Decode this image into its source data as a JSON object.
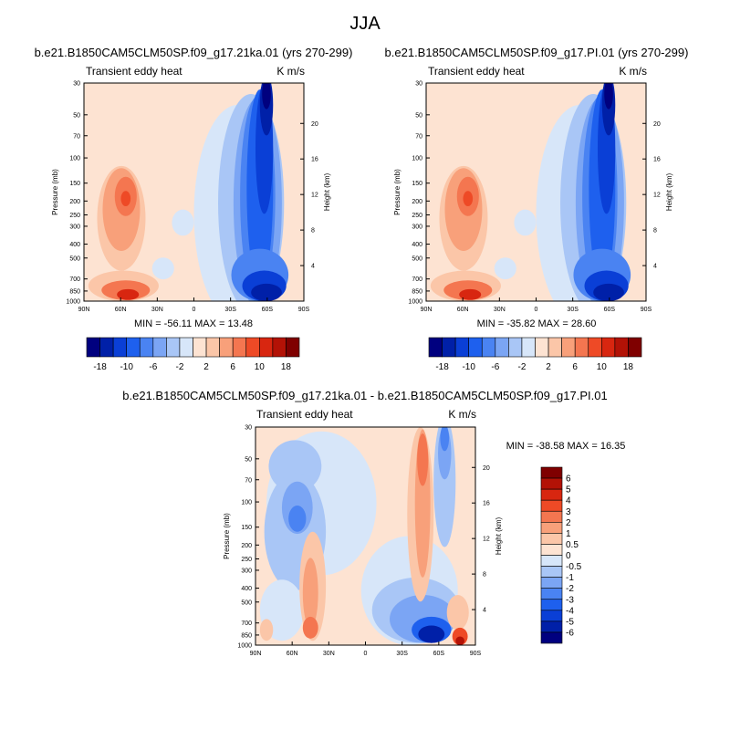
{
  "figure": {
    "title": "JJA"
  },
  "chart_data": [
    {
      "type": "heatmap",
      "case_title": "b.e21.B1850CAM5CLM50SP.f09_g17.21ka.01 (yrs 270-299)",
      "variable_label": "Transient eddy heat",
      "units": "K m/s",
      "ylabel": "Pressure (mb)",
      "ylabel_right": "Height (km)",
      "x_ticks": [
        "90N",
        "60N",
        "30N",
        "0",
        "30S",
        "60S",
        "90S"
      ],
      "y_ticks": [
        "30",
        "50",
        "70",
        "100",
        "150",
        "200",
        "250",
        "300",
        "400",
        "500",
        "700",
        "850",
        "1000"
      ],
      "height_ticks": [
        "20",
        "16",
        "12",
        "8",
        "4"
      ],
      "stats": "MIN = -56.11   MAX =  13.48",
      "min": -56.11,
      "max": 13.48,
      "colorbar_labels": [
        "-18",
        "-10",
        "-6",
        "-2",
        "2",
        "6",
        "10",
        "18"
      ]
    },
    {
      "type": "heatmap",
      "case_title": "b.e21.B1850CAM5CLM50SP.f09_g17.PI.01 (yrs 270-299)",
      "variable_label": "Transient eddy heat",
      "units": "K m/s",
      "ylabel": "Pressure (mb)",
      "ylabel_right": "Height (km)",
      "x_ticks": [
        "90N",
        "60N",
        "30N",
        "0",
        "30S",
        "60S",
        "90S"
      ],
      "y_ticks": [
        "30",
        "50",
        "70",
        "100",
        "150",
        "200",
        "250",
        "300",
        "400",
        "500",
        "700",
        "850",
        "1000"
      ],
      "height_ticks": [
        "20",
        "16",
        "12",
        "8",
        "4"
      ],
      "stats": "MIN = -35.82   MAX =  28.60",
      "min": -35.82,
      "max": 28.6,
      "colorbar_labels": [
        "-18",
        "-10",
        "-6",
        "-2",
        "2",
        "6",
        "10",
        "18"
      ]
    },
    {
      "type": "heatmap",
      "case_title": "b.e21.B1850CAM5CLM50SP.f09_g17.21ka.01 - b.e21.B1850CAM5CLM50SP.f09_g17.PI.01",
      "variable_label": "Transient eddy heat",
      "units": "K m/s",
      "ylabel": "Pressure (mb)",
      "ylabel_right": "Height (km)",
      "x_ticks": [
        "90N",
        "60N",
        "30N",
        "0",
        "30S",
        "60S",
        "90S"
      ],
      "y_ticks": [
        "30",
        "50",
        "70",
        "100",
        "150",
        "200",
        "250",
        "300",
        "400",
        "500",
        "700",
        "850",
        "1000"
      ],
      "height_ticks": [
        "20",
        "16",
        "12",
        "8",
        "4"
      ],
      "stats": "MIN = -38.58   MAX =  16.35",
      "min": -38.58,
      "max": 16.35,
      "colorbar_labels": [
        "6",
        "5",
        "4",
        "3",
        "2",
        "1",
        "0.5",
        "0",
        "-0.5",
        "-1",
        "-2",
        "-3",
        "-4",
        "-5",
        "-6"
      ]
    }
  ],
  "colormap": [
    "#00007f",
    "#0020a8",
    "#0a3fd6",
    "#1e60ee",
    "#4a83f2",
    "#7ba5f4",
    "#a9c6f6",
    "#d7e6f9",
    "#fde3d2",
    "#fbc6a8",
    "#f8a07a",
    "#f47650",
    "#ee4a26",
    "#d82610",
    "#b31206",
    "#7f0000"
  ]
}
